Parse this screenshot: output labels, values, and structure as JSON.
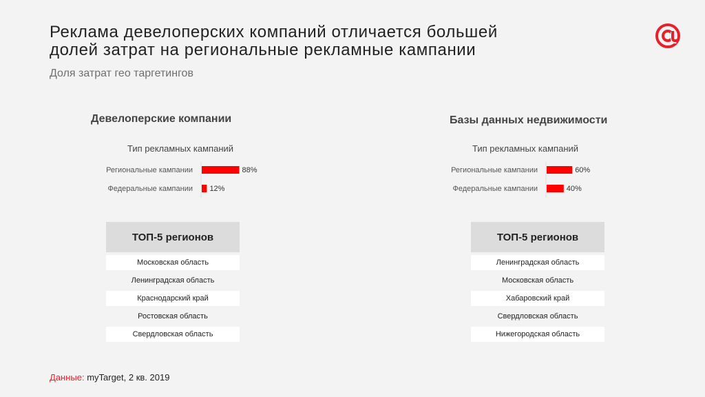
{
  "header": {
    "title_line1": "Реклама девелоперских компаний отличается большей",
    "title_line2": "долей затрат на региональные рекламные кампании",
    "subtitle": "Доля затрат гео таргетингов"
  },
  "colors": {
    "accent": "#ff0000",
    "brand": "#e8202a"
  },
  "logo_icon": "at-sign-icon",
  "panels": [
    {
      "heading": "Девелоперские компании",
      "top5_title": "ТОП-5 регионов",
      "top5": [
        "Московская область",
        "Ленинградская область",
        "Краснодарский край",
        "Ростовская область",
        "Свердловская область"
      ]
    },
    {
      "heading": "Базы данных недвижимости",
      "top5_title": "ТОП-5 регионов",
      "top5": [
        "Ленинградская область",
        "Московская область",
        "Хабаровский край",
        "Свердловская область",
        "Нижегородская область"
      ]
    }
  ],
  "chart_data": [
    {
      "type": "bar",
      "orientation": "horizontal",
      "title": "Тип рекламных кампаний",
      "categories": [
        "Региональные кампании",
        "Федеральные кампании"
      ],
      "values": [
        88,
        12
      ],
      "value_labels": [
        "88%",
        "12%"
      ],
      "xlim": [
        0,
        100
      ],
      "grid": false
    },
    {
      "type": "bar",
      "orientation": "horizontal",
      "title": "Тип рекламных кампаний",
      "categories": [
        "Региональные кампании",
        "Федеральные кампании"
      ],
      "values": [
        60,
        40
      ],
      "value_labels": [
        "60%",
        "40%"
      ],
      "xlim": [
        0,
        100
      ],
      "grid": false
    }
  ],
  "footer": {
    "source_label": "Данные:",
    "source_text": " myTarget, 2 кв. 2019"
  }
}
